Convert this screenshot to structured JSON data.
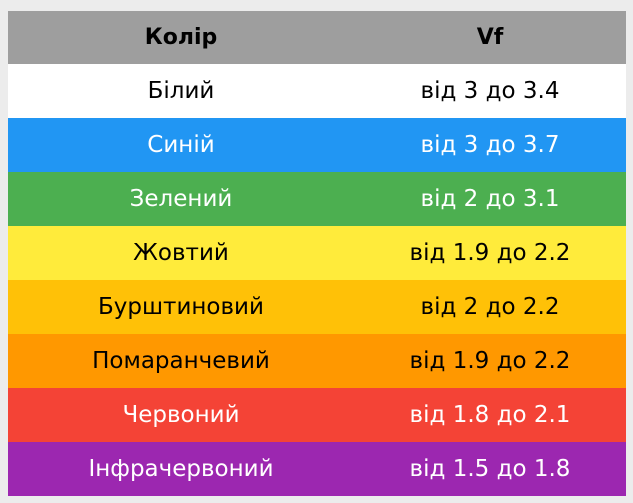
{
  "table": {
    "header": {
      "color": "Колір",
      "vf": "Vf"
    },
    "header_bg": "#9e9e9e",
    "rows": [
      {
        "color": "Білий",
        "vf": "від 3 до 3.4",
        "bg": "#ffffff",
        "fg": "#000000"
      },
      {
        "color": "Синій",
        "vf": "від 3 до 3.7",
        "bg": "#2196f3",
        "fg": "#ffffff"
      },
      {
        "color": "Зелений",
        "vf": "від 2 до 3.1",
        "bg": "#4caf50",
        "fg": "#ffffff"
      },
      {
        "color": "Жовтий",
        "vf": "від 1.9 до 2.2",
        "bg": "#ffeb3b",
        "fg": "#000000"
      },
      {
        "color": "Бурштиновий",
        "vf": "від 2 до 2.2",
        "bg": "#ffc107",
        "fg": "#000000"
      },
      {
        "color": "Помаранчевий",
        "vf": "від 1.9 до 2.2",
        "bg": "#ff9800",
        "fg": "#000000"
      },
      {
        "color": "Червоний",
        "vf": "від 1.8 до 2.1",
        "bg": "#f44336",
        "fg": "#ffffff"
      },
      {
        "color": "Інфрачервоний",
        "vf": "від 1.5 до 1.8",
        "bg": "#9c27b0",
        "fg": "#ffffff"
      }
    ]
  }
}
